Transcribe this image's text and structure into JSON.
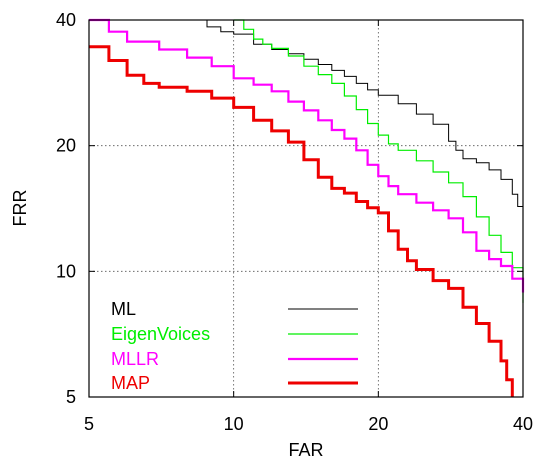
{
  "chart_data": {
    "type": "line",
    "title": "",
    "xlabel": "FAR",
    "ylabel": "FRR",
    "xscale": "log",
    "yscale": "log",
    "xlim": [
      5,
      40
    ],
    "ylim": [
      5,
      40
    ],
    "x_ticks": [
      "5",
      "10",
      "20",
      "40"
    ],
    "y_ticks": [
      "5",
      "10",
      "20",
      "40"
    ],
    "grid": "dotted gridlines at 10 and 20",
    "legend_placement": "bottom-left",
    "series": [
      {
        "name": "ML",
        "color": "#000000",
        "points": [
          [
            8.6,
            40
          ],
          [
            8.8,
            38.5
          ],
          [
            9.4,
            37.5
          ],
          [
            10,
            37
          ],
          [
            11,
            35
          ],
          [
            12,
            34
          ],
          [
            13,
            33.2
          ],
          [
            14,
            32.2
          ],
          [
            15,
            31.3
          ],
          [
            16,
            30.3
          ],
          [
            17,
            29.3
          ],
          [
            18,
            28.2
          ],
          [
            19,
            27.2
          ],
          [
            20,
            26.4
          ],
          [
            22,
            25.2
          ],
          [
            24,
            23.8
          ],
          [
            26,
            22.5
          ],
          [
            28,
            20.5
          ],
          [
            29,
            19.5
          ],
          [
            30,
            18.6
          ],
          [
            32,
            18.2
          ],
          [
            34,
            17.5
          ],
          [
            36,
            16.6
          ],
          [
            38,
            15.3
          ],
          [
            39,
            14.3
          ],
          [
            40,
            13.2
          ]
        ]
      },
      {
        "name": "EigenVoices",
        "color": "#00ee00",
        "points": [
          [
            10,
            40
          ],
          [
            10.5,
            38
          ],
          [
            11,
            36
          ],
          [
            11.5,
            35
          ],
          [
            12,
            34.2
          ],
          [
            13,
            32.8
          ],
          [
            14,
            31
          ],
          [
            15,
            29.6
          ],
          [
            16,
            28.2
          ],
          [
            17,
            26.3
          ],
          [
            18,
            24.4
          ],
          [
            19,
            22.6
          ],
          [
            20,
            21.2
          ],
          [
            21,
            20.2
          ],
          [
            22,
            19.5
          ],
          [
            24,
            18.4
          ],
          [
            26,
            17.3
          ],
          [
            28,
            16.3
          ],
          [
            30,
            15.1
          ],
          [
            32,
            13.5
          ],
          [
            34,
            12.2
          ],
          [
            36,
            11.1
          ],
          [
            38,
            10.2
          ],
          [
            40,
            8.4
          ]
        ]
      },
      {
        "name": "MLLR",
        "color": "#ff00ff",
        "points": [
          [
            5,
            40
          ],
          [
            5.5,
            37.5
          ],
          [
            6,
            35.5
          ],
          [
            7,
            34
          ],
          [
            8,
            32.5
          ],
          [
            9,
            31
          ],
          [
            10,
            29
          ],
          [
            11,
            28
          ],
          [
            12,
            27
          ],
          [
            13,
            25.5
          ],
          [
            14,
            24.3
          ],
          [
            15,
            23
          ],
          [
            16,
            21.8
          ],
          [
            17,
            20.8
          ],
          [
            18,
            19.5
          ],
          [
            19,
            18
          ],
          [
            20,
            16.9
          ],
          [
            21,
            16
          ],
          [
            22,
            15.3
          ],
          [
            24,
            14.6
          ],
          [
            26,
            14
          ],
          [
            28,
            13.4
          ],
          [
            30,
            12.4
          ],
          [
            32,
            11.2
          ],
          [
            34,
            10.7
          ],
          [
            36,
            10.3
          ],
          [
            38,
            9.6
          ],
          [
            40,
            8.9
          ]
        ]
      },
      {
        "name": "MAP",
        "color": "#ee0000",
        "points": [
          [
            5,
            34.5
          ],
          [
            5.5,
            32
          ],
          [
            6,
            29.5
          ],
          [
            6.5,
            28.2
          ],
          [
            7,
            27.6
          ],
          [
            8,
            27
          ],
          [
            9,
            26
          ],
          [
            10,
            24.7
          ],
          [
            11,
            23
          ],
          [
            12,
            21.7
          ],
          [
            13,
            20.4
          ],
          [
            14,
            18.5
          ],
          [
            15,
            16.8
          ],
          [
            16,
            15.8
          ],
          [
            17,
            15.4
          ],
          [
            18,
            14.7
          ],
          [
            19,
            14.2
          ],
          [
            20,
            13.8
          ],
          [
            21,
            12.5
          ],
          [
            22,
            11.3
          ],
          [
            23,
            10.6
          ],
          [
            24,
            10.1
          ],
          [
            26,
            9.5
          ],
          [
            28,
            9.1
          ],
          [
            30,
            8.2
          ],
          [
            32,
            7.5
          ],
          [
            34,
            6.8
          ],
          [
            36,
            6.1
          ],
          [
            37,
            5.5
          ],
          [
            38,
            5
          ]
        ]
      }
    ]
  }
}
